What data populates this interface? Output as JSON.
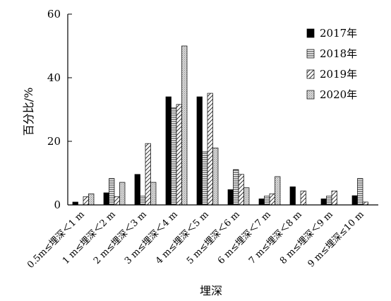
{
  "chart_data": {
    "type": "bar",
    "xlabel": "埋深",
    "ylabel": "百分比/%",
    "ylim": [
      0,
      60
    ],
    "yticks": [
      0,
      20,
      40,
      60
    ],
    "grid": false,
    "legend_position": "top-right",
    "categories": [
      "0.5m≤埋深＜1 m",
      "1 m≤埋深＜2 m",
      "2 m≤埋深＜3 m",
      "3 m≤埋深＜4 m",
      "4 m≤埋深＜5 m",
      "5 m≤埋深＜6 m",
      "6 m≤埋深＜7 m",
      "7 m≤埋深＜8 m",
      "8 m≤埋深＜9 m",
      "9 m≤埋深≤10 m"
    ],
    "series": [
      {
        "name": "2017年",
        "pattern": "solid",
        "values": [
          0.9,
          3.8,
          9.6,
          34.0,
          34.0,
          4.8,
          1.9,
          5.7,
          1.9,
          2.9
        ]
      },
      {
        "name": "2018年",
        "pattern": "horizontal",
        "values": [
          0,
          8.3,
          2.8,
          30.5,
          16.7,
          11.1,
          2.8,
          0,
          2.8,
          8.3
        ]
      },
      {
        "name": "2019年",
        "pattern": "diagonal",
        "values": [
          2.6,
          2.6,
          19.3,
          31.6,
          35.1,
          9.6,
          3.5,
          4.4,
          4.4,
          0.9
        ]
      },
      {
        "name": "2020年",
        "pattern": "dotted",
        "values": [
          3.5,
          7.1,
          7.1,
          50.0,
          17.9,
          5.4,
          8.9,
          0,
          0,
          0
        ]
      }
    ],
    "colors": {
      "solid": "#000000",
      "stroke": "#000000",
      "fill_light": "#ffffff"
    }
  }
}
